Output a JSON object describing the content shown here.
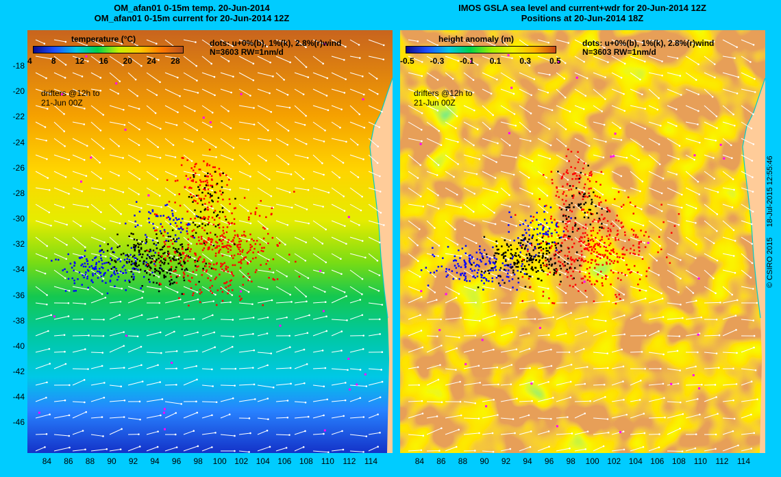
{
  "left_title": {
    "line1": "OM_afan01 0-15m temp. 20-Jun-2014",
    "line2": "OM_afan01 0-15m current for 20-Jun-2014 12Z"
  },
  "right_title": {
    "line1": "IMOS GSLA sea level and current+wdr for 20-Jun-2014 12Z",
    "line2": "Positions at 20-Jun-2014 18Z"
  },
  "left_colorbar": {
    "title": "temperature (°C)",
    "ticks": [
      "4",
      "8",
      "12",
      "16",
      "20",
      "24",
      "28"
    ],
    "range": [
      4,
      29
    ],
    "colors": [
      "#0a0a8c",
      "#1e50ff",
      "#00c8e6",
      "#00d24b",
      "#c8f000",
      "#ffc800",
      "#ff7800",
      "#b4501e"
    ]
  },
  "right_colorbar": {
    "title": "height anomaly (m)",
    "ticks": [
      "-0.5",
      "-0.3",
      "-0.1",
      "0.1",
      "0.3",
      "0.5"
    ],
    "range": [
      -0.5,
      0.5
    ],
    "colors": [
      "#0a0a8c",
      "#1e50ff",
      "#00c8e6",
      "#00d24b",
      "#a0f000",
      "#f0f000",
      "#ffb400",
      "#c84614"
    ]
  },
  "dots_info": {
    "line1": "dots: u+0%(b), 1%(k), 2.8%(r)wind",
    "line2": "N=3603 RW=1nm/d"
  },
  "drifters_note": {
    "line1": "drifters @12h to",
    "line2": "21-Jun 00Z"
  },
  "y_axis_labels": [
    "-18",
    "-20",
    "-22",
    "-24",
    "-26",
    "-28",
    "-30",
    "-32",
    "-34",
    "-36",
    "-38",
    "-40",
    "-42",
    "-44",
    "-46"
  ],
  "x_axis_labels": [
    "84",
    "86",
    "88",
    "90",
    "92",
    "94",
    "96",
    "98",
    "100",
    "102",
    "104",
    "106",
    "108",
    "110",
    "112",
    "114"
  ],
  "map_extent": {
    "lon": [
      82.2,
      116.0
    ],
    "lat": [
      -48.4,
      -15.2
    ]
  },
  "credit": {
    "copyright": "© CSIRO 2015",
    "timestamp": "18-Jul-2015 12:55:46"
  },
  "colors": {
    "background": "#00ccff",
    "land": "#ffcc99",
    "coast": "#00cccc",
    "dot_blue": "#0000ff",
    "dot_black": "#000000",
    "dot_red": "#ff0000",
    "marker_magenta": "#ff00ff"
  }
}
